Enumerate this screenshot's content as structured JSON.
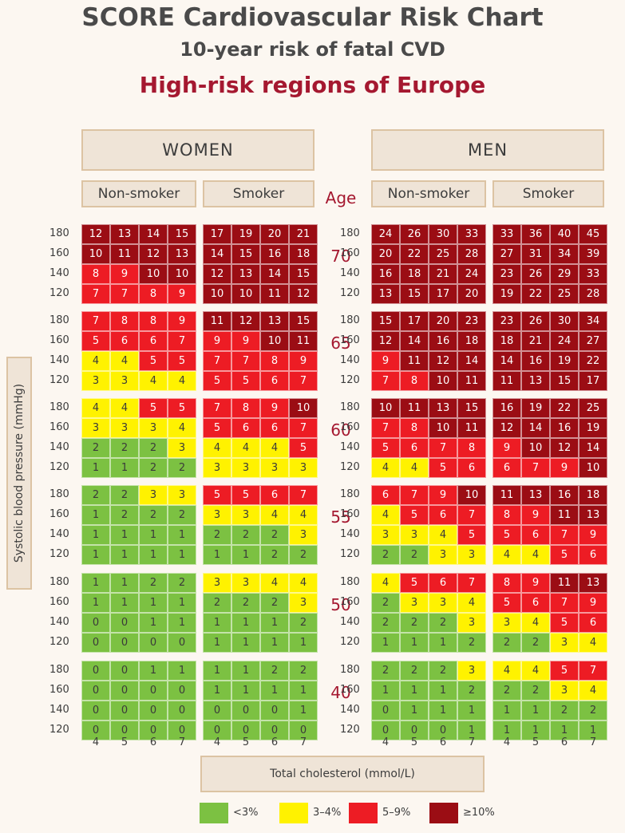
{
  "title": "SCORE Cardiovascular Risk Chart",
  "subtitle": "10-year risk of fatal CVD",
  "region": "High-risk regions of Europe",
  "gender_labels": [
    "WOMEN",
    "MEN"
  ],
  "smoker_labels": [
    "Non-smoker",
    "Smoker"
  ],
  "age_label": "Age",
  "ylabel": "Systolic blood pressure (mmHg)",
  "xlabel": "Total cholesterol (mmol/L)",
  "colors": {
    "low": "#7cc142",
    "mid": "#fff200",
    "high": "#ed1c24",
    "vhigh": "#9b0d14"
  },
  "legend": [
    {
      "label": "<3%",
      "color": "#7cc142"
    },
    {
      "label": "3–4%",
      "color": "#fff200"
    },
    {
      "label": "5–9%",
      "color": "#ed1c24"
    },
    {
      "label": "≥10%",
      "color": "#9b0d14"
    }
  ],
  "chart_data": {
    "type": "heatmap",
    "ages": [
      70,
      65,
      60,
      55,
      50,
      40
    ],
    "sbp": [
      180,
      160,
      140,
      120
    ],
    "cholesterol": [
      4,
      5,
      6,
      7
    ],
    "panels": [
      {
        "sex": "WOMEN",
        "smoker": "Non-smoker",
        "grids": [
          [
            [
              12,
              13,
              14,
              15
            ],
            [
              10,
              11,
              12,
              13
            ],
            [
              8,
              9,
              10,
              10
            ],
            [
              7,
              7,
              8,
              9
            ]
          ],
          [
            [
              7,
              8,
              8,
              9
            ],
            [
              5,
              6,
              6,
              7
            ],
            [
              4,
              4,
              5,
              5
            ],
            [
              3,
              3,
              4,
              4
            ]
          ],
          [
            [
              4,
              4,
              5,
              5
            ],
            [
              3,
              3,
              3,
              4
            ],
            [
              2,
              2,
              2,
              3
            ],
            [
              1,
              1,
              2,
              2
            ]
          ],
          [
            [
              2,
              2,
              3,
              3
            ],
            [
              1,
              2,
              2,
              2
            ],
            [
              1,
              1,
              1,
              1
            ],
            [
              1,
              1,
              1,
              1
            ]
          ],
          [
            [
              1,
              1,
              2,
              2
            ],
            [
              1,
              1,
              1,
              1
            ],
            [
              0,
              0,
              1,
              1
            ],
            [
              0,
              0,
              0,
              0
            ]
          ],
          [
            [
              0,
              0,
              1,
              1
            ],
            [
              0,
              0,
              0,
              0
            ],
            [
              0,
              0,
              0,
              0
            ],
            [
              0,
              0,
              0,
              0
            ]
          ]
        ]
      },
      {
        "sex": "WOMEN",
        "smoker": "Smoker",
        "grids": [
          [
            [
              17,
              19,
              20,
              21
            ],
            [
              14,
              15,
              16,
              18
            ],
            [
              12,
              13,
              14,
              15
            ],
            [
              10,
              10,
              11,
              12
            ]
          ],
          [
            [
              11,
              12,
              13,
              15
            ],
            [
              9,
              9,
              10,
              11
            ],
            [
              7,
              7,
              8,
              9
            ],
            [
              5,
              5,
              6,
              7
            ]
          ],
          [
            [
              7,
              8,
              9,
              10
            ],
            [
              5,
              6,
              6,
              7
            ],
            [
              4,
              4,
              4,
              5
            ],
            [
              3,
              3,
              3,
              3
            ]
          ],
          [
            [
              5,
              5,
              6,
              7
            ],
            [
              3,
              3,
              4,
              4
            ],
            [
              2,
              2,
              2,
              3
            ],
            [
              1,
              1,
              2,
              2
            ]
          ],
          [
            [
              3,
              3,
              4,
              4
            ],
            [
              2,
              2,
              2,
              3
            ],
            [
              1,
              1,
              1,
              2
            ],
            [
              1,
              1,
              1,
              1
            ]
          ],
          [
            [
              1,
              1,
              2,
              2
            ],
            [
              1,
              1,
              1,
              1
            ],
            [
              0,
              0,
              0,
              1
            ],
            [
              0,
              0,
              0,
              0
            ]
          ]
        ]
      },
      {
        "sex": "MEN",
        "smoker": "Non-smoker",
        "grids": [
          [
            [
              24,
              26,
              30,
              33
            ],
            [
              20,
              22,
              25,
              28
            ],
            [
              16,
              18,
              21,
              24
            ],
            [
              13,
              15,
              17,
              20
            ]
          ],
          [
            [
              15,
              17,
              20,
              23
            ],
            [
              12,
              14,
              16,
              18
            ],
            [
              9,
              11,
              12,
              14
            ],
            [
              7,
              8,
              10,
              11
            ]
          ],
          [
            [
              10,
              11,
              13,
              15
            ],
            [
              7,
              8,
              10,
              11
            ],
            [
              5,
              6,
              7,
              8
            ],
            [
              4,
              4,
              5,
              6
            ]
          ],
          [
            [
              6,
              7,
              9,
              10
            ],
            [
              4,
              5,
              6,
              7
            ],
            [
              3,
              3,
              4,
              5
            ],
            [
              2,
              2,
              3,
              3
            ]
          ],
          [
            [
              4,
              5,
              6,
              7
            ],
            [
              2,
              3,
              3,
              4
            ],
            [
              2,
              2,
              2,
              3
            ],
            [
              1,
              1,
              1,
              2
            ]
          ],
          [
            [
              2,
              2,
              2,
              3
            ],
            [
              1,
              1,
              1,
              2
            ],
            [
              0,
              1,
              1,
              1
            ],
            [
              0,
              0,
              0,
              1
            ]
          ]
        ]
      },
      {
        "sex": "MEN",
        "smoker": "Smoker",
        "grids": [
          [
            [
              33,
              36,
              40,
              45
            ],
            [
              27,
              31,
              34,
              39
            ],
            [
              23,
              26,
              29,
              33
            ],
            [
              19,
              22,
              25,
              28
            ]
          ],
          [
            [
              23,
              26,
              30,
              34
            ],
            [
              18,
              21,
              24,
              27
            ],
            [
              14,
              16,
              19,
              22
            ],
            [
              11,
              13,
              15,
              17
            ]
          ],
          [
            [
              16,
              19,
              22,
              25
            ],
            [
              12,
              14,
              16,
              19
            ],
            [
              9,
              10,
              12,
              14
            ],
            [
              6,
              7,
              9,
              10
            ]
          ],
          [
            [
              11,
              13,
              16,
              18
            ],
            [
              8,
              9,
              11,
              13
            ],
            [
              5,
              6,
              7,
              9
            ],
            [
              4,
              4,
              5,
              6
            ]
          ],
          [
            [
              8,
              9,
              11,
              13
            ],
            [
              5,
              6,
              7,
              9
            ],
            [
              3,
              4,
              5,
              6
            ],
            [
              2,
              2,
              3,
              4
            ]
          ],
          [
            [
              4,
              4,
              5,
              7
            ],
            [
              2,
              2,
              3,
              4
            ],
            [
              1,
              1,
              2,
              2
            ],
            [
              1,
              1,
              1,
              1
            ]
          ]
        ]
      }
    ]
  }
}
